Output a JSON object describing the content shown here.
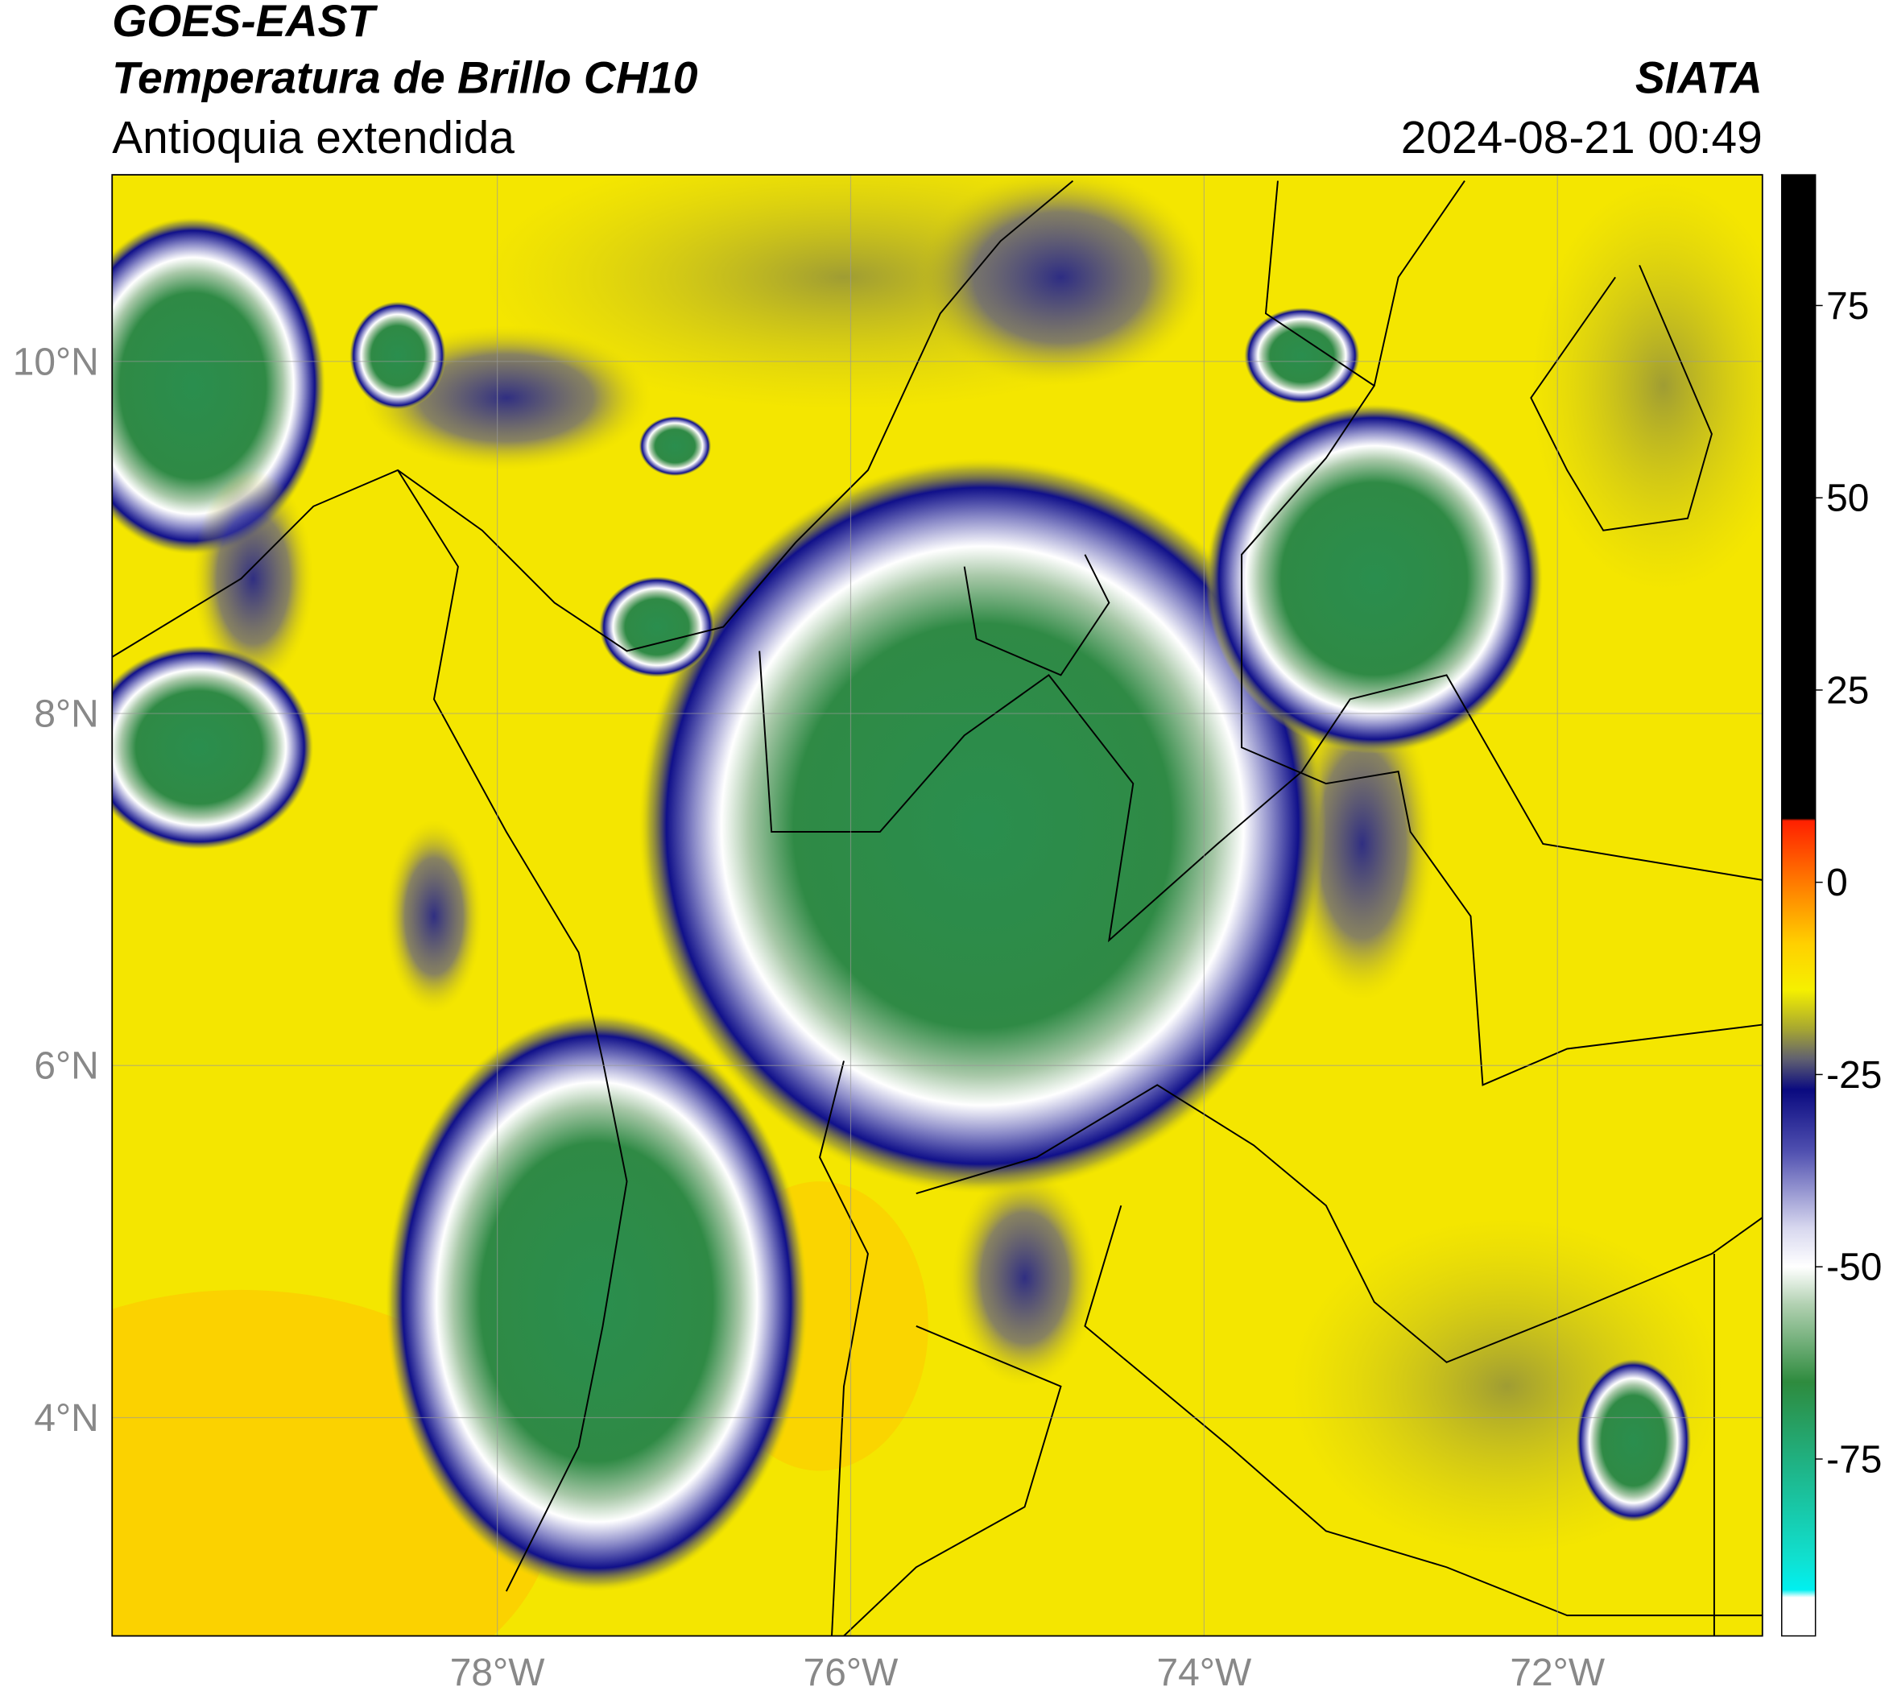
{
  "header": {
    "satellite": "GOES-EAST",
    "product": "Temperatura de Brillo CH10",
    "region": "Antioquia extendida",
    "source": "SIATA",
    "datetime": "2024-08-21 00:49"
  },
  "map": {
    "xlim": [
      -80.18,
      -70.84
    ],
    "ylim": [
      2.76,
      11.06
    ],
    "xticks": [
      {
        "value": -78,
        "label": "78°W"
      },
      {
        "value": -76,
        "label": "76°W"
      },
      {
        "value": -74,
        "label": "74°W"
      },
      {
        "value": -72,
        "label": "72°W"
      }
    ],
    "yticks": [
      {
        "value": 4,
        "label": "4°N"
      },
      {
        "value": 6,
        "label": "6°N"
      },
      {
        "value": 8,
        "label": "8°N"
      },
      {
        "value": 10,
        "label": "10°N"
      }
    ],
    "grid": true
  },
  "colorbar": {
    "lim": [
      -98,
      92
    ],
    "ticks": [
      -75,
      -50,
      -25,
      0,
      25,
      50,
      75
    ],
    "stops": [
      {
        "value": 92,
        "color": "#000000"
      },
      {
        "value": 8.3,
        "color": "#000000"
      },
      {
        "value": 8,
        "color": "#ff2000"
      },
      {
        "value": 0,
        "color": "#ff7a00"
      },
      {
        "value": -8,
        "color": "#ffd000"
      },
      {
        "value": -14,
        "color": "#f5f000"
      },
      {
        "value": -19,
        "color": "#a8a830"
      },
      {
        "value": -23,
        "color": "#606070"
      },
      {
        "value": -27,
        "color": "#0a0a80"
      },
      {
        "value": -35,
        "color": "#5050b0"
      },
      {
        "value": -45,
        "color": "#d8d8ef"
      },
      {
        "value": -50,
        "color": "#ffffff"
      },
      {
        "value": -55,
        "color": "#b0d0b0"
      },
      {
        "value": -65,
        "color": "#2e8b3e"
      },
      {
        "value": -75,
        "color": "#20b080"
      },
      {
        "value": -88,
        "color": "#10e0d0"
      },
      {
        "value": -92,
        "color": "#00f0f0"
      },
      {
        "value": -93,
        "color": "#ffffff"
      },
      {
        "value": -98,
        "color": "#ffffff"
      }
    ]
  }
}
